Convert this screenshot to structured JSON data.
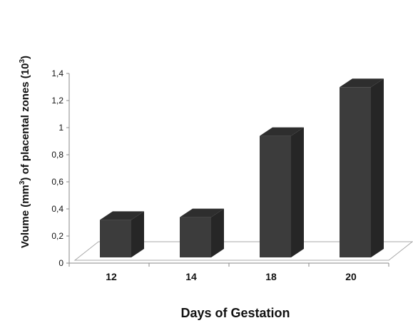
{
  "chart_data": {
    "type": "bar",
    "categories": [
      "12",
      "14",
      "18",
      "20"
    ],
    "values": [
      0.34,
      0.36,
      0.96,
      1.32
    ],
    "y_ticks": [
      "0",
      "0,2",
      "0,4",
      "0,6",
      "0,8",
      "1",
      "1,2",
      "1,4"
    ],
    "ylim": [
      0,
      1.4
    ],
    "xlabel": "Days of Gestation",
    "ylabel": {
      "part1": "Volume (mm",
      "sup1": "3",
      "part2": ")  of placental zones (10",
      "sup2": "3",
      "part3": ")"
    },
    "grid": false,
    "legend": "none",
    "colors": {
      "bar_front": "#3c3c3c",
      "bar_side": "#262626",
      "bar_top": "#2e2e2e",
      "floor_line": "#a9a9a9",
      "axis": "#8a8a8a"
    }
  }
}
